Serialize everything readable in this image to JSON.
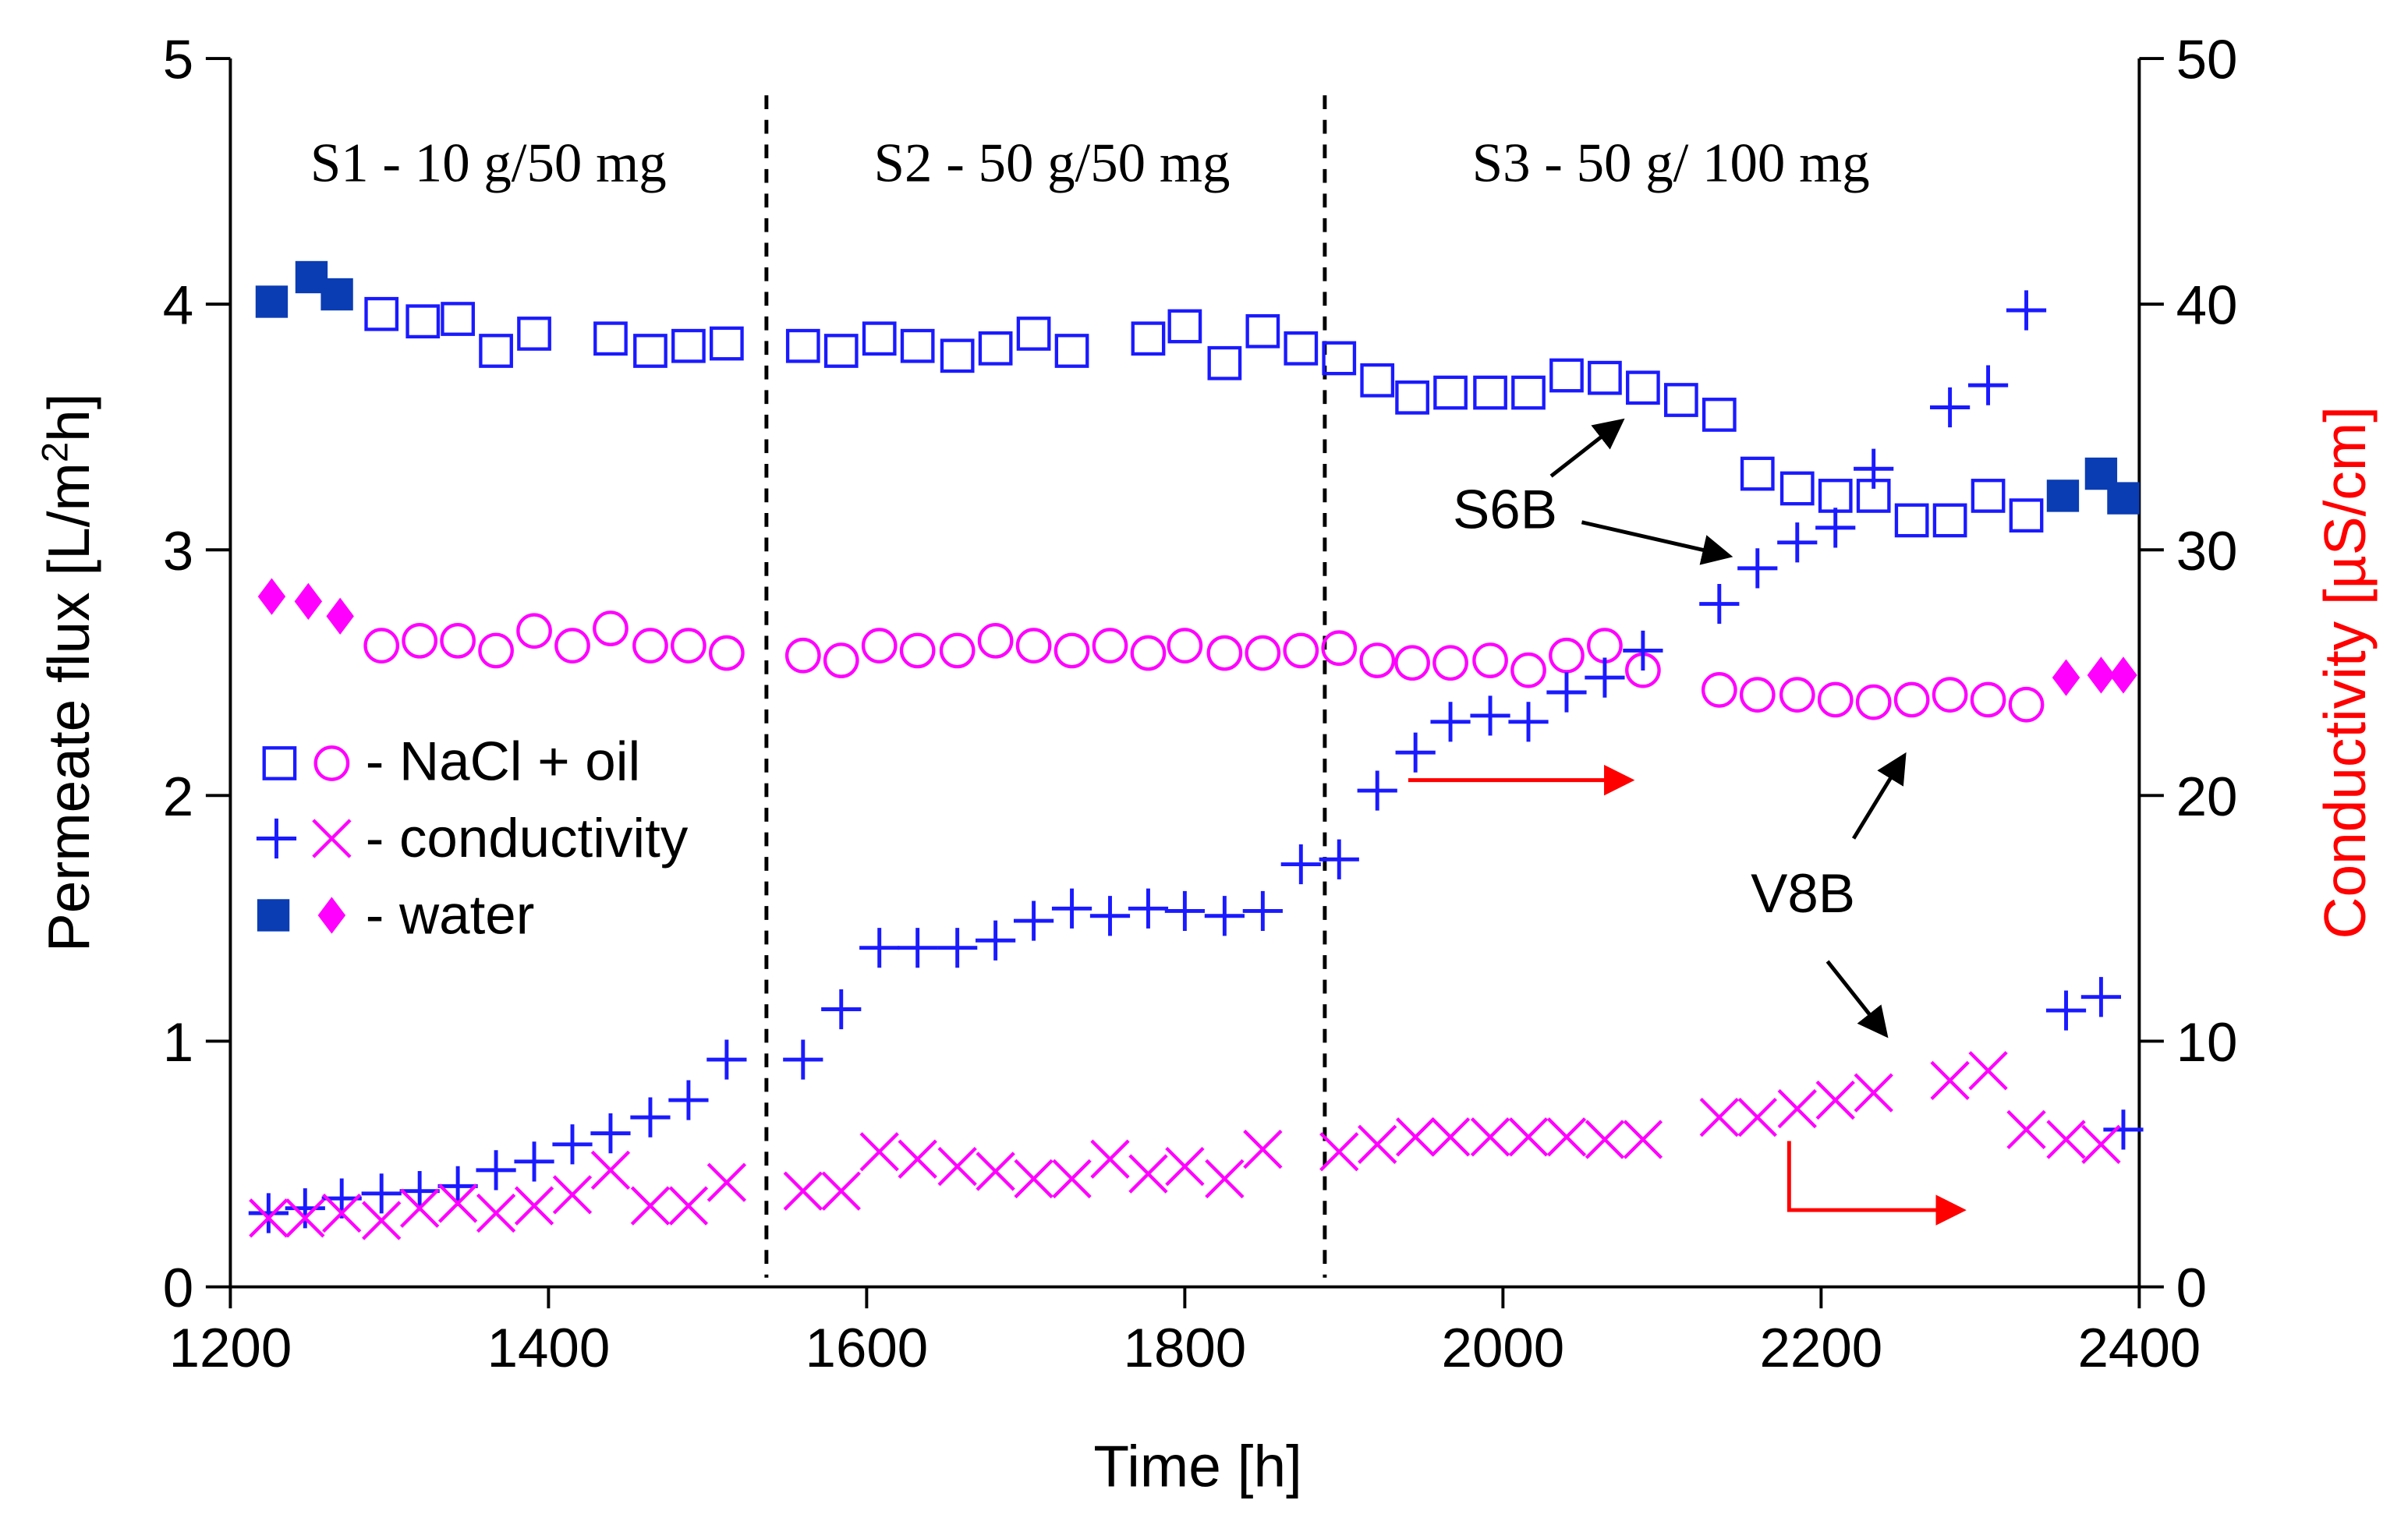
{
  "chart_data": {
    "type": "scatter",
    "xlabel": "Time [h]",
    "ylabel_left": "Permeate flux [L/m",
    "ylabel_left_sup": "2",
    "ylabel_left_end": "h]",
    "ylabel_right": "Conductivity [µS/cm]",
    "xlim": [
      1200,
      2400
    ],
    "ylim_left": [
      0,
      5
    ],
    "ylim_right": [
      0,
      50
    ],
    "xticks": [
      "1200",
      "1400",
      "1600",
      "1800",
      "2000",
      "2200",
      "2400"
    ],
    "yticks_left": [
      "0",
      "1",
      "2",
      "3",
      "4",
      "5"
    ],
    "yticks_right": [
      "0",
      "10",
      "20",
      "30",
      "40",
      "50"
    ],
    "grid": false,
    "colors": {
      "blue": "#1a1aff",
      "magenta": "#ff00ff",
      "navy": "#0a3cb4",
      "red": "#ff0000",
      "axis_right_label": "#ff0000"
    },
    "stage_dividers_x": [
      1537,
      1888
    ],
    "stages": [
      "S1 - 10 g/50 mg",
      "S2 - 50 g/50 mg",
      "S3 - 50 g/ 100 mg"
    ],
    "legend": {
      "placement": "center-left",
      "entries": [
        "- NaCl + oil",
        "- conductivity",
        "- water"
      ]
    },
    "annotations": [
      "S6B",
      "V8B"
    ],
    "series": [
      {
        "name": "NaCl + oil flux (S6B)",
        "axis": "left",
        "marker": "open-square",
        "color": "#1a1aff",
        "x": [
          1295,
          1321,
          1343,
          1367,
          1391,
          1439,
          1464,
          1488,
          1512,
          1560,
          1584,
          1608,
          1632,
          1657,
          1681,
          1705,
          1729,
          1777,
          1800,
          1825,
          1849,
          1873,
          1897,
          1921,
          1943,
          1967,
          1992,
          2016,
          2040,
          2064,
          2088,
          2112,
          2136,
          2160,
          2185,
          2209,
          2233,
          2257,
          2281,
          2305,
          2329
        ],
        "y": [
          3.96,
          3.93,
          3.94,
          3.81,
          3.88,
          3.86,
          3.81,
          3.83,
          3.84,
          3.83,
          3.81,
          3.86,
          3.83,
          3.79,
          3.82,
          3.88,
          3.81,
          3.86,
          3.91,
          3.76,
          3.89,
          3.82,
          3.78,
          3.69,
          3.62,
          3.64,
          3.64,
          3.64,
          3.71,
          3.7,
          3.66,
          3.61,
          3.55,
          3.31,
          3.25,
          3.22,
          3.22,
          3.12,
          3.12,
          3.22,
          3.14
        ]
      },
      {
        "name": "NaCl + oil flux (V8B)",
        "axis": "left",
        "marker": "open-circle",
        "color": "#ff00ff",
        "x": [
          1295,
          1319,
          1343,
          1367,
          1391,
          1415,
          1439,
          1464,
          1488,
          1512,
          1560,
          1584,
          1608,
          1632,
          1657,
          1681,
          1705,
          1729,
          1753,
          1777,
          1800,
          1825,
          1849,
          1873,
          1897,
          1921,
          1943,
          1967,
          1992,
          2016,
          2040,
          2064,
          2088,
          2136,
          2160,
          2185,
          2209,
          2233,
          2257,
          2281,
          2305,
          2329
        ],
        "y": [
          2.61,
          2.63,
          2.63,
          2.59,
          2.67,
          2.61,
          2.68,
          2.61,
          2.61,
          2.58,
          2.57,
          2.55,
          2.61,
          2.59,
          2.59,
          2.63,
          2.61,
          2.59,
          2.61,
          2.58,
          2.61,
          2.58,
          2.58,
          2.59,
          2.6,
          2.55,
          2.54,
          2.54,
          2.55,
          2.51,
          2.57,
          2.61,
          2.51,
          2.43,
          2.41,
          2.41,
          2.39,
          2.38,
          2.39,
          2.41,
          2.39,
          2.37
        ]
      },
      {
        "name": "Conductivity (S6B)",
        "axis": "right",
        "marker": "plus",
        "color": "#1a1aff",
        "x": [
          1224,
          1247,
          1270,
          1295,
          1319,
          1343,
          1367,
          1391,
          1415,
          1439,
          1464,
          1488,
          1512,
          1560,
          1584,
          1608,
          1632,
          1657,
          1681,
          1705,
          1729,
          1753,
          1777,
          1800,
          1825,
          1849,
          1873,
          1897,
          1921,
          1945,
          1967,
          1992,
          2016,
          2040,
          2064,
          2088,
          2136,
          2160,
          2185,
          2209,
          2233,
          2281,
          2305,
          2329,
          2354,
          2376,
          2390
        ],
        "y": [
          3.0,
          3.2,
          3.6,
          3.8,
          3.9,
          4.1,
          4.75,
          5.1,
          5.8,
          6.25,
          6.9,
          7.6,
          9.25,
          9.25,
          11.3,
          13.8,
          13.8,
          13.8,
          14.1,
          14.9,
          15.4,
          15.1,
          15.4,
          15.3,
          15.1,
          15.3,
          17.2,
          17.4,
          20.2,
          21.75,
          23.0,
          23.25,
          23.0,
          24.2,
          24.8,
          25.9,
          27.8,
          29.25,
          30.3,
          30.9,
          33.3,
          35.8,
          36.7,
          39.75,
          11.25,
          11.8,
          6.4
        ]
      },
      {
        "name": "Conductivity (V8B)",
        "axis": "right",
        "marker": "cross",
        "color": "#ff00ff",
        "x": [
          1224,
          1247,
          1270,
          1295,
          1319,
          1343,
          1367,
          1391,
          1415,
          1439,
          1464,
          1488,
          1512,
          1560,
          1584,
          1608,
          1632,
          1657,
          1681,
          1705,
          1729,
          1753,
          1777,
          1800,
          1825,
          1849,
          1897,
          1921,
          1945,
          1967,
          1992,
          2016,
          2040,
          2064,
          2088,
          2136,
          2160,
          2185,
          2209,
          2233,
          2281,
          2305,
          2329,
          2354,
          2376
        ],
        "y": [
          2.8,
          2.8,
          3.0,
          2.7,
          3.2,
          3.4,
          3.0,
          3.3,
          3.75,
          4.75,
          3.3,
          3.3,
          4.25,
          3.9,
          3.9,
          5.5,
          5.2,
          4.9,
          4.7,
          4.4,
          4.4,
          5.2,
          4.6,
          4.9,
          4.4,
          5.6,
          5.5,
          5.8,
          6.1,
          6.1,
          6.1,
          6.1,
          6.1,
          6.0,
          6.0,
          6.9,
          6.9,
          7.25,
          7.6,
          7.9,
          8.4,
          8.8,
          6.4,
          6.0,
          5.8
        ]
      },
      {
        "name": "Water flux (S6B)",
        "axis": "left",
        "marker": "filled-square",
        "color": "#0a3cb4",
        "x": [
          1226,
          1251,
          1267,
          2352,
          2376,
          2390
        ],
        "y": [
          4.01,
          4.11,
          4.04,
          3.22,
          3.31,
          3.21
        ]
      },
      {
        "name": "Water flux (V8B)",
        "axis": "left",
        "marker": "filled-diamond",
        "color": "#ff00ff",
        "x": [
          1226,
          1249,
          1269,
          2354,
          2376,
          2390
        ],
        "y": [
          2.81,
          2.79,
          2.73,
          2.48,
          2.49,
          2.49
        ]
      }
    ]
  }
}
